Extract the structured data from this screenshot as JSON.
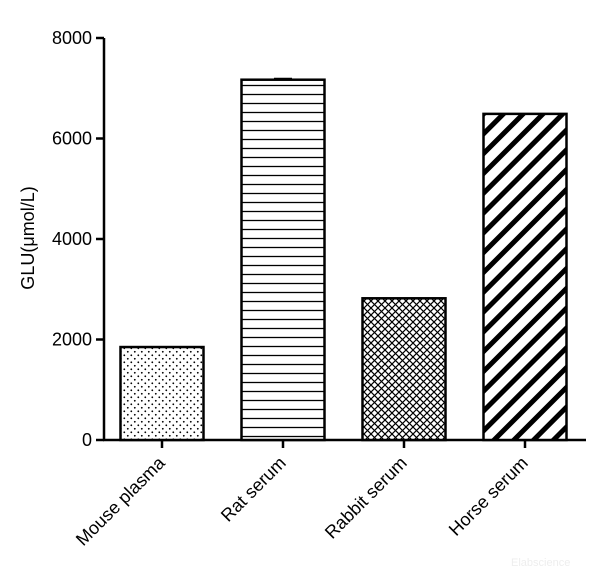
{
  "chart_data": {
    "type": "bar",
    "categories": [
      "Mouse plasma",
      "Rat serum",
      "Rabbit serum",
      "Horse serum"
    ],
    "values": [
      1850,
      7170,
      2820,
      6490
    ],
    "errors": [
      0,
      20,
      0,
      0
    ],
    "patterns": [
      "dots",
      "horizontal-lines",
      "crosshatch",
      "diagonal-lines"
    ],
    "ylabel": "GLU(μmol/L)",
    "xlabel": "",
    "ylim": [
      0,
      8000
    ],
    "yticks": [
      0,
      2000,
      4000,
      6000,
      8000
    ],
    "grid": false,
    "colors": {
      "bar_fill": "#ffffff",
      "stroke": "#000000"
    }
  },
  "watermark": "Elabscience"
}
